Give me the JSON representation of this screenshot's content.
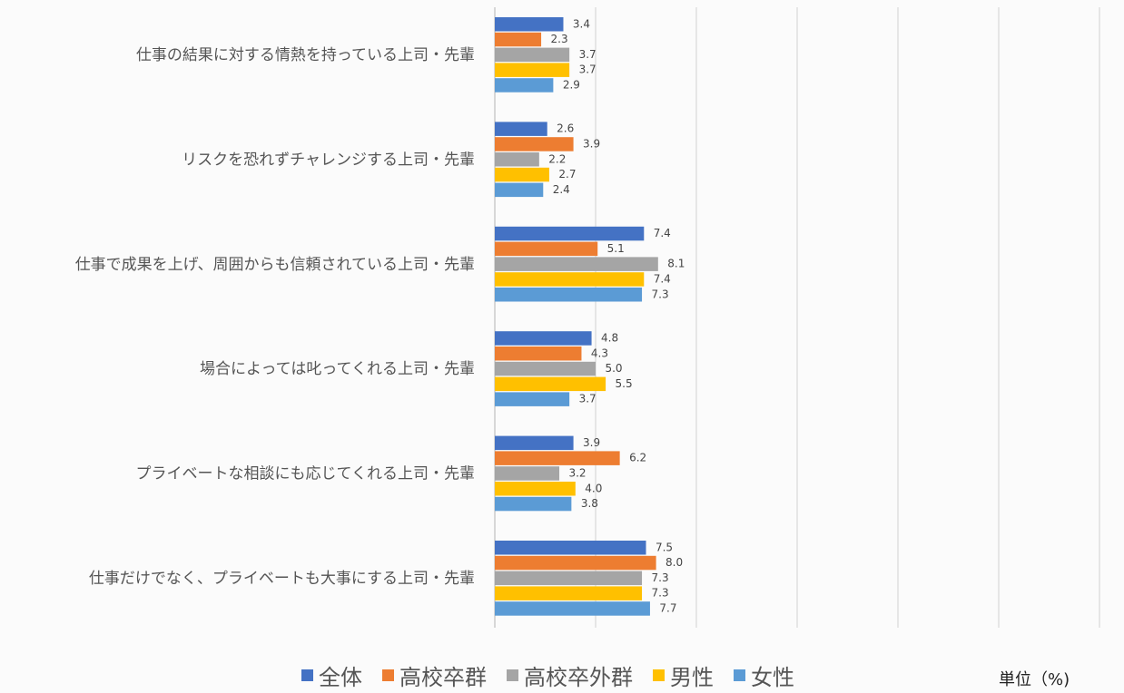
{
  "chart_data": {
    "type": "bar",
    "orientation": "horizontal",
    "categories": [
      "仕事の結果に対する情熱を持っている上司・先輩",
      "リスクを恐れずチャレンジする上司・先輩",
      "仕事で成果を上げ、周囲からも信頼されている上司・先輩",
      "場合によっては叱ってくれる上司・先輩",
      "プライベートな相談にも応じてくれる上司・先輩",
      "仕事だけでなく、プライベートも大事にする上司・先輩"
    ],
    "series": [
      {
        "name": "全体",
        "color": "#4472c4",
        "values": [
          3.4,
          2.6,
          7.4,
          4.8,
          3.9,
          7.5
        ]
      },
      {
        "name": "高校卒群",
        "color": "#ed7d31",
        "values": [
          2.3,
          3.9,
          5.1,
          4.3,
          6.2,
          8.0
        ]
      },
      {
        "name": "高校卒外群",
        "color": "#a5a5a5",
        "values": [
          3.7,
          2.2,
          8.1,
          5.0,
          3.2,
          7.3
        ]
      },
      {
        "name": "男性",
        "color": "#ffc000",
        "values": [
          3.7,
          2.7,
          7.4,
          5.5,
          4.0,
          7.3
        ]
      },
      {
        "name": "女性",
        "color": "#5b9bd5",
        "values": [
          2.9,
          2.4,
          7.3,
          3.7,
          3.8,
          7.7
        ]
      }
    ],
    "xlim": [
      0,
      30
    ],
    "grid": "vertical",
    "legend_position": "bottom",
    "unit_label": "単位（%)"
  }
}
